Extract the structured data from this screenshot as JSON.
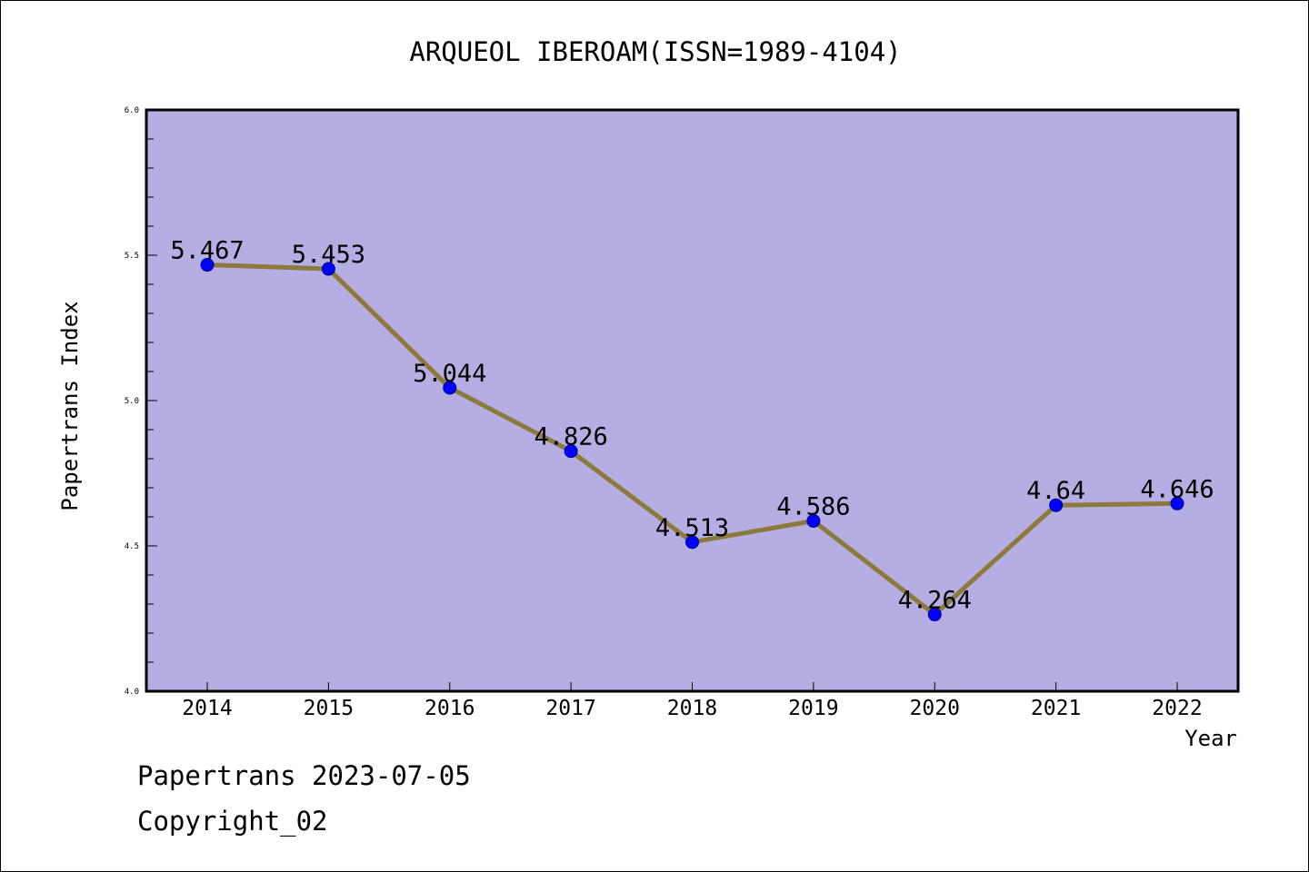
{
  "chart_data": {
    "type": "line",
    "title": "ARQUEOL IBEROAM(ISSN=1989-4104)",
    "xlabel": "Year",
    "ylabel": "Papertrans Index",
    "categories": [
      "2014",
      "2015",
      "2016",
      "2017",
      "2018",
      "2019",
      "2020",
      "2021",
      "2022"
    ],
    "series": [
      {
        "values": [
          5.467,
          5.453,
          5.044,
          4.826,
          4.513,
          4.586,
          4.264,
          4.64,
          4.646
        ],
        "labels": [
          "5.467",
          "5.453",
          "5.044",
          "4.826",
          "4.513",
          "4.586",
          "4.264",
          "4.64",
          "4.646"
        ]
      }
    ],
    "ylim": [
      4.0,
      6.0
    ],
    "yticks": [
      "4.0",
      "4.5",
      "5.0",
      "5.5",
      "6.0"
    ],
    "grid": false,
    "colors": {
      "plot_background": "#b4aee2",
      "line": "#8c7a3a",
      "marker": "#0000ff"
    }
  },
  "footer": {
    "line1": "Papertrans 2023-07-05",
    "line2": "Copyright_02"
  }
}
